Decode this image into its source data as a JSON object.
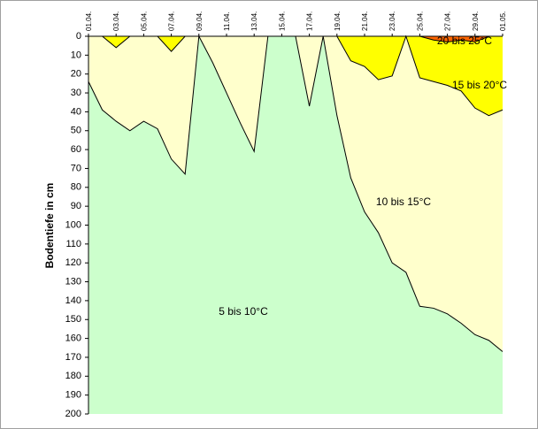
{
  "chart_data": {
    "type": "area",
    "y_label": "Bodentiefe in cm",
    "categories": [
      "01.04.",
      null,
      "03.04.",
      null,
      "05.04.",
      null,
      "07.04.",
      null,
      "09.04.",
      null,
      "11.04.",
      null,
      "13.04.",
      null,
      "15.04.",
      null,
      "17.04.",
      null,
      "19.04.",
      null,
      "21.04.",
      null,
      "23.04.",
      null,
      "25.04.",
      null,
      "27.04.",
      null,
      "29.04.",
      null,
      "01.05."
    ],
    "ylim": [
      0,
      200
    ],
    "y_inverted": true,
    "yticks": [
      0,
      10,
      20,
      30,
      40,
      50,
      60,
      70,
      80,
      90,
      100,
      110,
      120,
      130,
      140,
      150,
      160,
      170,
      180,
      190,
      200
    ],
    "series": [
      {
        "name": "20 bis 25°C",
        "color": "#ff6600",
        "values": [
          null,
          null,
          null,
          null,
          null,
          null,
          null,
          null,
          null,
          null,
          null,
          null,
          null,
          null,
          null,
          null,
          null,
          null,
          null,
          null,
          null,
          null,
          null,
          null,
          0,
          0,
          0,
          0,
          0,
          0,
          null
        ]
      },
      {
        "name": "15 bis 20°C",
        "color": "#ffff00",
        "values": [
          0,
          0,
          0,
          0,
          0,
          0,
          0,
          0,
          0,
          0,
          0,
          0,
          0,
          0,
          0,
          0,
          0,
          0,
          0,
          0,
          0,
          0,
          0,
          0,
          0,
          2,
          3,
          2,
          3,
          0,
          0
        ]
      },
      {
        "name": "10 bis 15°C",
        "color": "#ffffcc",
        "values": [
          0,
          0,
          6,
          0,
          0,
          0,
          8,
          0,
          0,
          0,
          0,
          0,
          0,
          0,
          0,
          0,
          0,
          0,
          0,
          13,
          16,
          23,
          21,
          0,
          22,
          24,
          26,
          29,
          38,
          42,
          39
        ]
      },
      {
        "name": "5 bis 10°C",
        "color": "#ccffcc",
        "values": [
          24,
          39,
          45,
          50,
          45,
          49,
          65,
          73,
          0,
          14,
          30,
          46,
          61,
          0,
          0,
          0,
          37,
          0,
          42,
          75,
          93,
          104,
          120,
          125,
          143,
          144,
          147,
          152,
          158,
          161,
          167
        ]
      }
    ]
  }
}
